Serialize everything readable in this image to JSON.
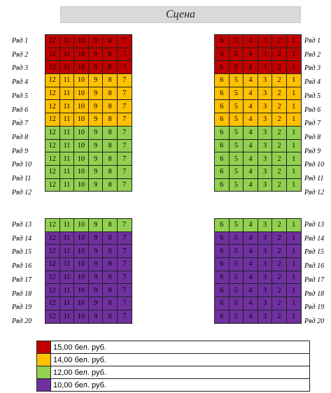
{
  "stage": {
    "label": "Сцена"
  },
  "sections": {
    "top": {
      "rows": [
        {
          "label": "Ряд 1",
          "price": "15"
        },
        {
          "label": "Ряд 2",
          "price": "15"
        },
        {
          "label": "Ряд 3",
          "price": "15"
        },
        {
          "label": "Ряд 4",
          "price": "14"
        },
        {
          "label": "Ряд 5",
          "price": "14"
        },
        {
          "label": "Ряд 6",
          "price": "14"
        },
        {
          "label": "Ряд 7",
          "price": "14"
        },
        {
          "label": "Ряд 8",
          "price": "12"
        },
        {
          "label": "Ряд 9",
          "price": "12"
        },
        {
          "label": "Ряд 10",
          "price": "12"
        },
        {
          "label": "Ряд 11",
          "price": "12"
        },
        {
          "label": "Ряд 12",
          "price": "12"
        }
      ]
    },
    "bottom": {
      "rows": [
        {
          "label": "Ряд 13",
          "price": "12"
        },
        {
          "label": "Ряд 14",
          "price": "10"
        },
        {
          "label": "Ряд 15",
          "price": "10"
        },
        {
          "label": "Ряд 16",
          "price": "10"
        },
        {
          "label": "Ряд 17",
          "price": "10"
        },
        {
          "label": "Ряд 18",
          "price": "10"
        },
        {
          "label": "Ряд 19",
          "price": "10"
        },
        {
          "label": "Ряд 20",
          "price": "10"
        }
      ]
    }
  },
  "left_seats": [
    "12",
    "11",
    "10",
    "9",
    "8",
    "7"
  ],
  "right_seats": [
    "6",
    "5",
    "4",
    "3",
    "2",
    "1"
  ],
  "prices": {
    "15": {
      "label": "15,00 бел. руб.",
      "color": "#c00000"
    },
    "14": {
      "label": "14,00 бел. руб.",
      "color": "#ffc000"
    },
    "12": {
      "label": "12,00 бел. руб.",
      "color": "#92d050"
    },
    "10": {
      "label": "10,00 бел. руб.",
      "color": "#7030a0"
    }
  },
  "legend": [
    {
      "price": "15",
      "label": "15,00 бел. руб."
    },
    {
      "price": "14",
      "label": "14,00 бел. руб."
    },
    {
      "price": "12",
      "label": "12,00 бел. руб."
    },
    {
      "price": "10",
      "label": "10,00 бел. руб."
    }
  ]
}
